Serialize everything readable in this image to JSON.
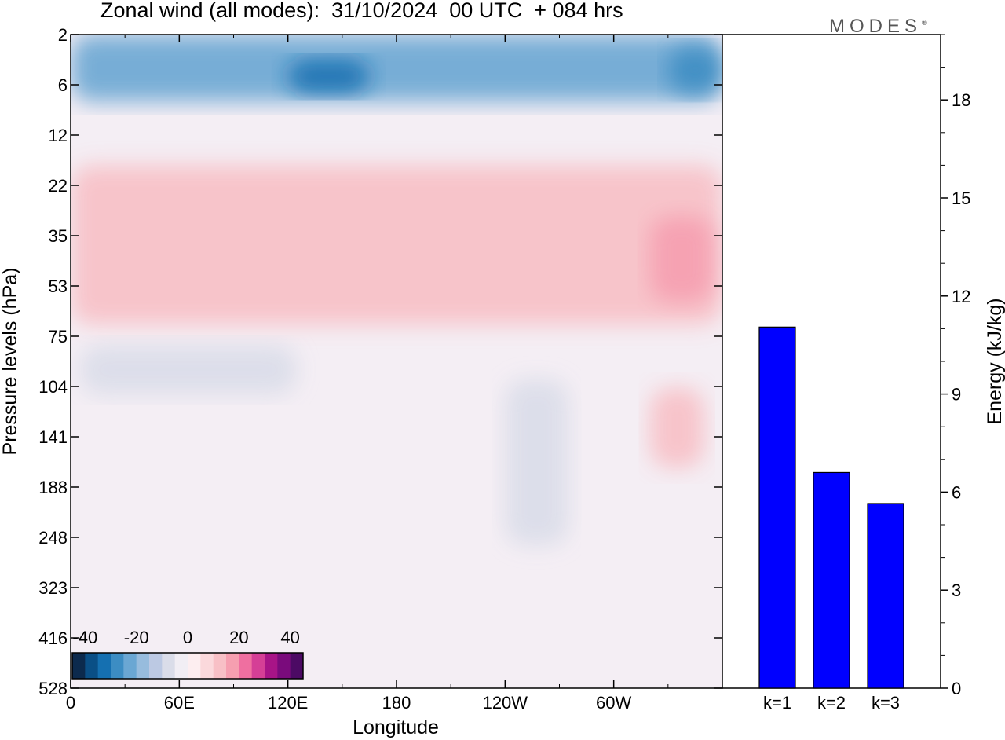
{
  "header": {
    "title": "Zonal wind (all modes):  31/10/2024  00 UTC  + 084 hrs",
    "logo_text": "MODES",
    "logo_mark": "®"
  },
  "chart_data": [
    {
      "type": "heatmap",
      "title": "Zonal wind (all modes):  31/10/2024  00 UTC  + 084 hrs",
      "xlabel": "Longitude",
      "ylabel": "Pressure levels (hPa)",
      "x_ticks": [
        "0",
        "60E",
        "120E",
        "180",
        "120W",
        "60W"
      ],
      "x_range_deg": [
        0,
        360
      ],
      "y_ticks": [
        "2",
        "6",
        "12",
        "22",
        "35",
        "53",
        "75",
        "104",
        "141",
        "188",
        "248",
        "323",
        "416",
        "528"
      ],
      "y_scale": "model levels (top 2 hPa, bottom 528 hPa)",
      "colorbar": {
        "tick_labels": [
          "-40",
          "-20",
          "0",
          "20",
          "40"
        ],
        "range": [
          -45,
          45
        ],
        "step": 5,
        "colors": [
          "#0c2a4d",
          "#0a4f86",
          "#1570b1",
          "#3c8dc3",
          "#6aa7d3",
          "#97bcdd",
          "#bcc9e3",
          "#dadde9",
          "#f1eef4",
          "#fdeef0",
          "#fbd9dc",
          "#f8c0c6",
          "#f69fb0",
          "#ef6fa0",
          "#d53f96",
          "#a81487",
          "#7a0b7c",
          "#4c0a64"
        ]
      },
      "regions": [
        {
          "name": "easterly_jet_top",
          "lon_min": 0,
          "lon_max": 360,
          "lev_min": 2,
          "lev_max": 8,
          "value": -25
        },
        {
          "name": "easterly_core_east",
          "lon_min": 120,
          "lon_max": 165,
          "lev_min": 4,
          "lev_max": 7,
          "value": -35
        },
        {
          "name": "easterly_core_west",
          "lon_min": 330,
          "lon_max": 360,
          "lev_min": 3,
          "lev_max": 7,
          "value": -30
        },
        {
          "name": "westerly_midstrat",
          "lon_min": 0,
          "lon_max": 360,
          "lev_min": 18,
          "lev_max": 70,
          "value": 10
        },
        {
          "name": "westerly_patch_west",
          "lon_min": 320,
          "lon_max": 355,
          "lev_min": 30,
          "lev_max": 60,
          "value": 15
        },
        {
          "name": "easterly_lowstrat",
          "lon_min": 5,
          "lon_max": 125,
          "lev_min": 80,
          "lev_max": 110,
          "value": -7
        },
        {
          "name": "easterly_tongue",
          "lon_min": 240,
          "lon_max": 275,
          "lev_min": 100,
          "lev_max": 260,
          "value": -8
        },
        {
          "name": "westerly_tropo_patch",
          "lon_min": 320,
          "lon_max": 350,
          "lev_min": 105,
          "lev_max": 170,
          "value": 12
        }
      ]
    },
    {
      "type": "bar",
      "categories": [
        "k=1",
        "k=2",
        "k=3"
      ],
      "values": [
        11.05,
        6.6,
        5.65
      ],
      "ylabel": "Energy (kJ/kg)",
      "ylim": [
        0,
        20
      ],
      "y_ticks": [
        "0",
        "3",
        "6",
        "9",
        "12",
        "15",
        "18"
      ],
      "bar_color": "#0000ff"
    }
  ]
}
